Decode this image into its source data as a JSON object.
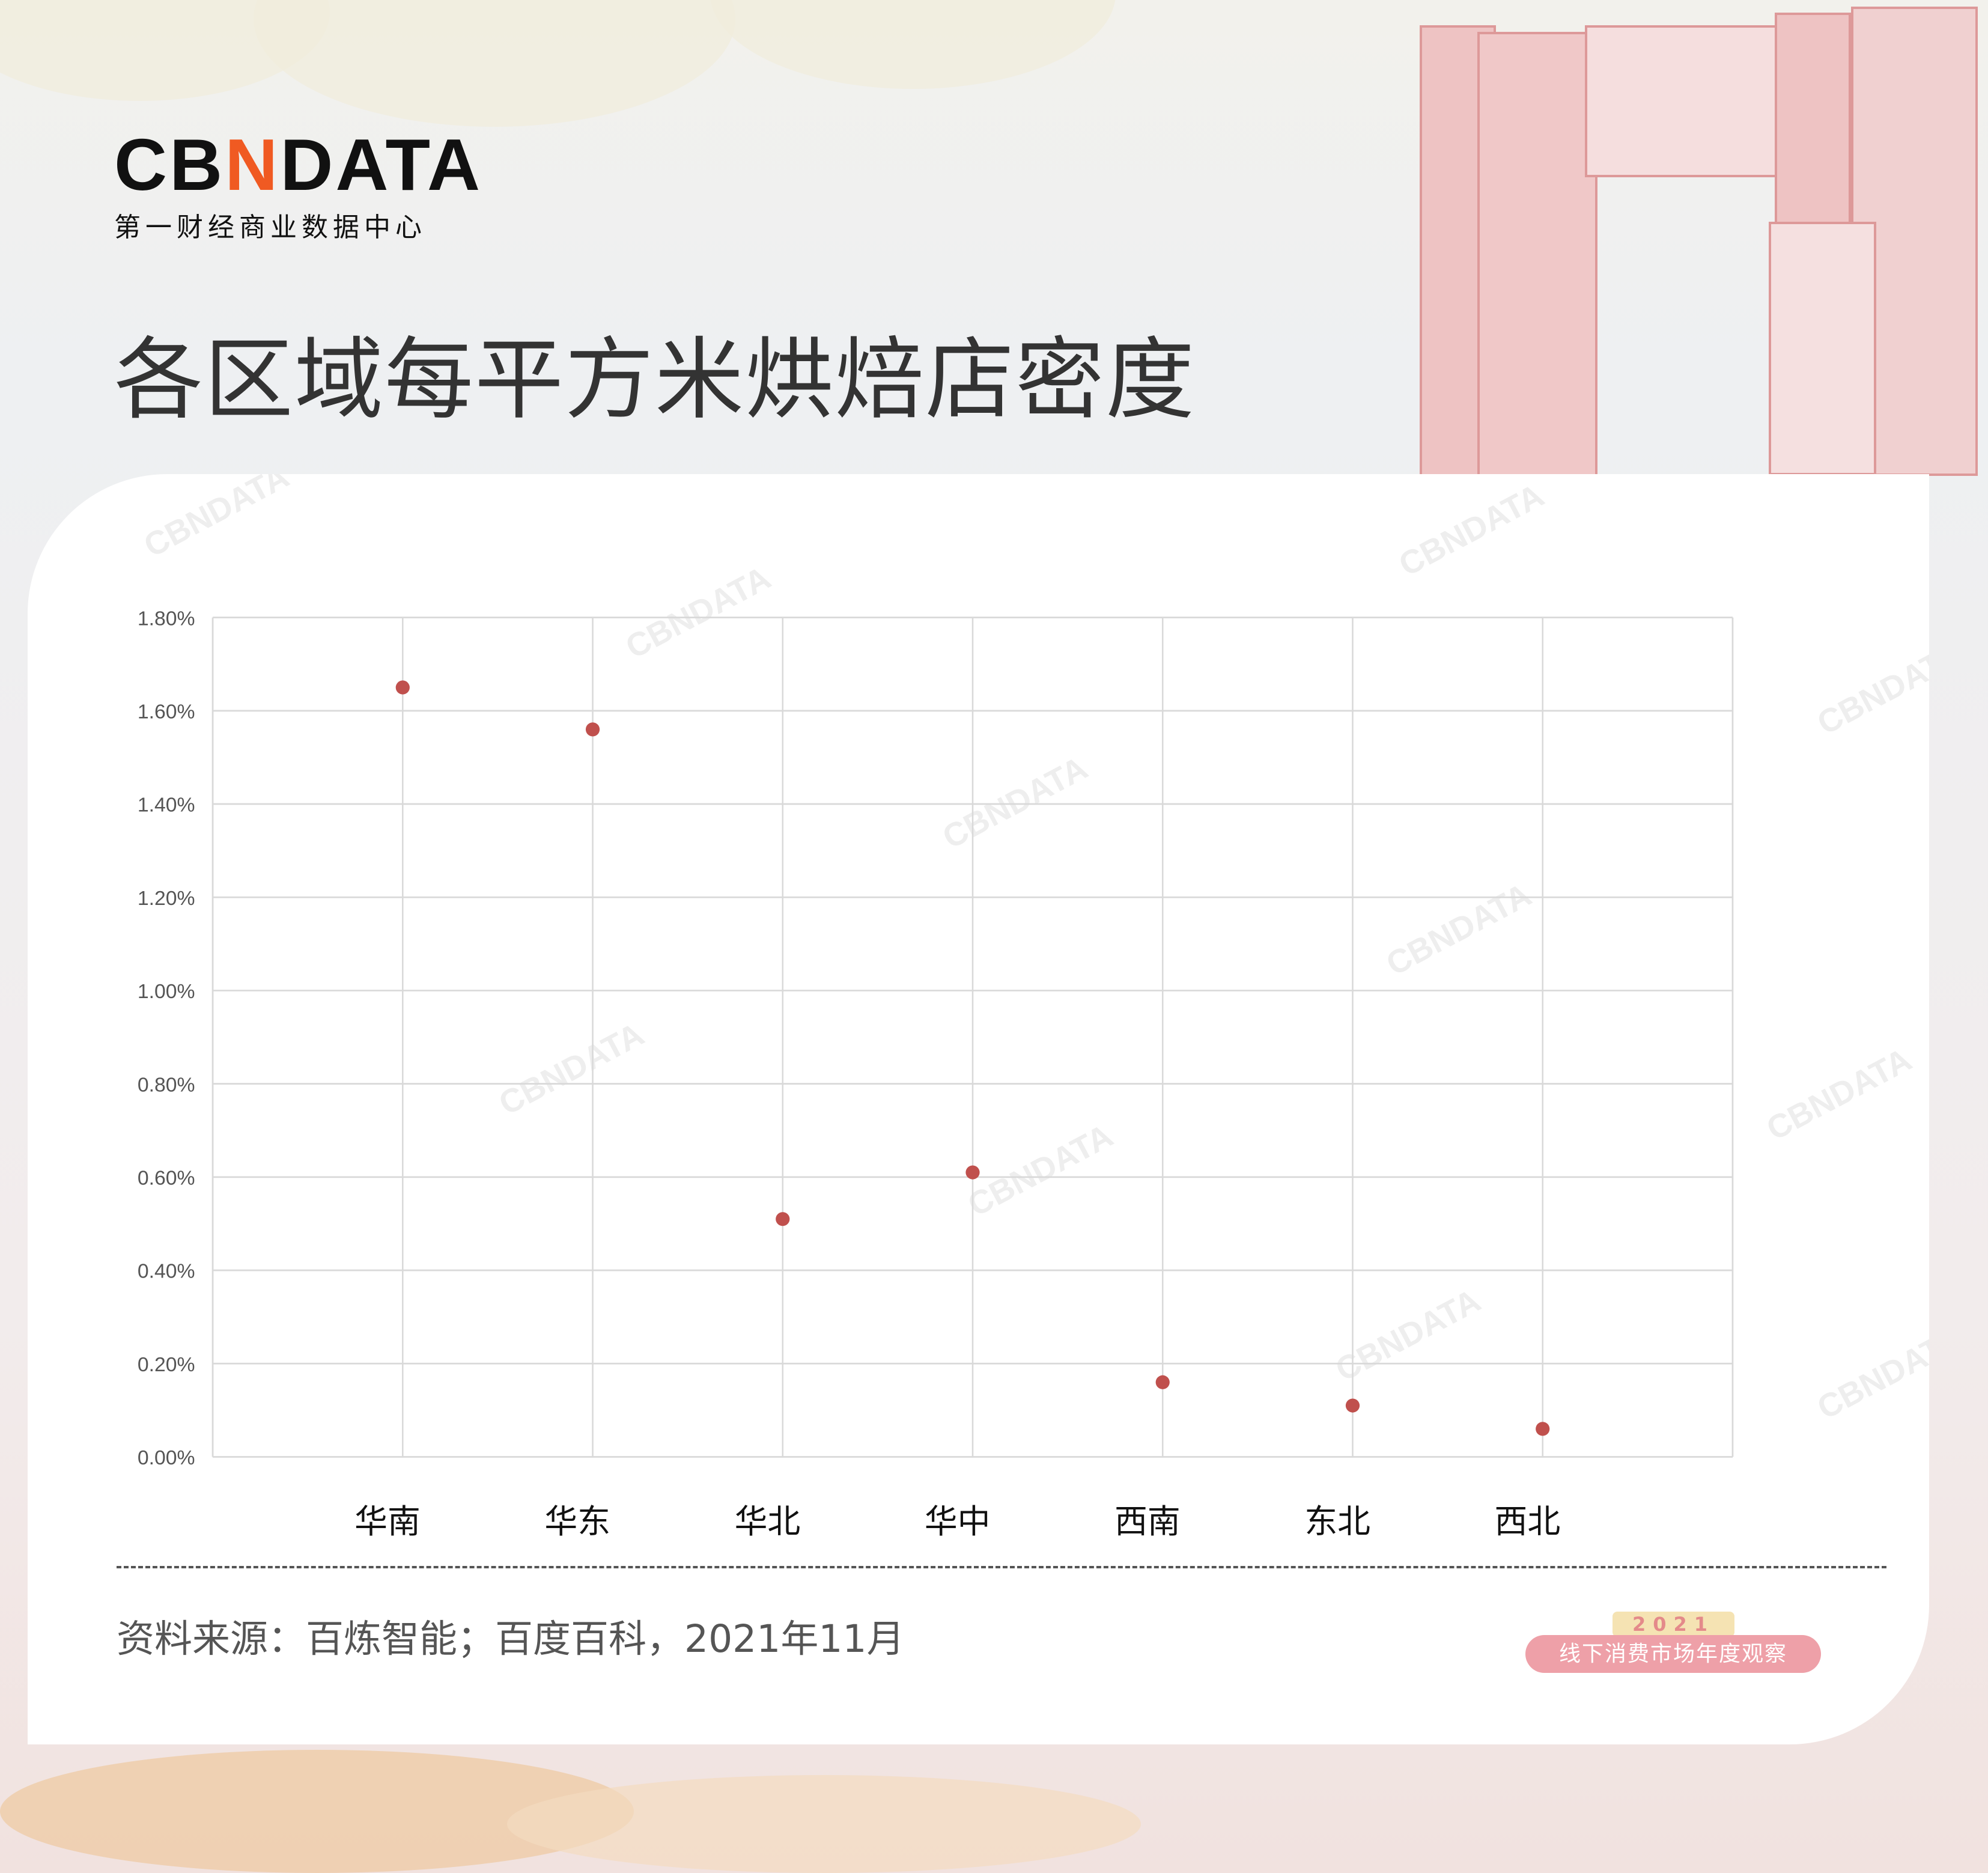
{
  "logo": {
    "mark_left": "CB",
    "mark_n": "N",
    "mark_right": "DATA",
    "subtitle": "第一财经商业数据中心"
  },
  "title": "各区域每平方米烘焙店密度",
  "source": "资料来源：百炼智能；百度百科，2021年11月",
  "badge": {
    "year": "2021",
    "label": "线下消费市场年度观察"
  },
  "watermark": "CBNDATA",
  "colors": {
    "point": "#c0504d",
    "grid": "#d9d9d9",
    "accent": "#f05a22"
  },
  "chart_data": {
    "type": "scatter",
    "title": "",
    "xlabel": "",
    "ylabel": "",
    "categories": [
      "华南",
      "华东",
      "华北",
      "华中",
      "西南",
      "东北",
      "西北"
    ],
    "values": [
      1.65,
      1.56,
      0.51,
      0.61,
      0.16,
      0.11,
      0.06
    ],
    "unit": "%",
    "ylim": [
      0,
      1.8
    ],
    "yticks": [
      "0.00%",
      "0.20%",
      "0.40%",
      "0.60%",
      "0.80%",
      "1.00%",
      "1.20%",
      "1.40%",
      "1.60%",
      "1.80%"
    ],
    "grid": true,
    "legend": "none"
  }
}
